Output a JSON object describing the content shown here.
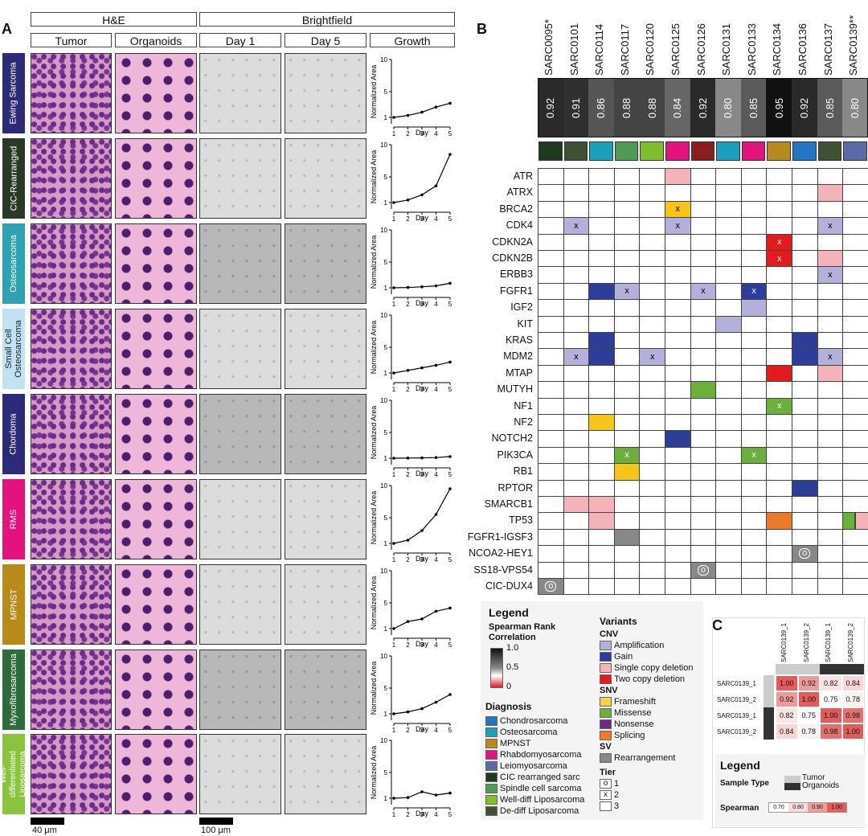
{
  "panels": {
    "a": "A",
    "b": "B",
    "c": "C"
  },
  "panelA": {
    "group_headers": {
      "he": "H&E",
      "bf": "Brightfield"
    },
    "col_headers": [
      "Tumor",
      "Organoids",
      "Day 1",
      "Day 5",
      "Growth"
    ],
    "rows": [
      {
        "label": "Ewing Sarcoma",
        "color": "#2c2a79"
      },
      {
        "label": "CIC-Rearranged",
        "color": "#2a3a27"
      },
      {
        "label": "Osteosarcoma",
        "color": "#2fa2b2"
      },
      {
        "label": "Small Cell Osteosarcoma",
        "color": "#bfe3f2"
      },
      {
        "label": "Chordoma",
        "color": "#2c2a79"
      },
      {
        "label": "RMS",
        "color": "#e4127d"
      },
      {
        "label": "MPNST",
        "color": "#b88a1a"
      },
      {
        "label": "Myxofibrosarcoma",
        "color": "#2f6a3a"
      },
      {
        "label": "Well-differentiated Liposarcoma",
        "color": "#8ac43f"
      }
    ],
    "scale_bars": [
      "40 μm",
      "100 μm"
    ],
    "chart_data": [
      {
        "type": "line",
        "ylabel": "Normalized Area",
        "xlabel": "Day",
        "x": [
          1,
          2,
          3,
          4,
          5
        ],
        "y": [
          1,
          1.3,
          1.8,
          2.6,
          3.2
        ],
        "yticks": [
          1,
          5,
          10
        ],
        "ylim": [
          0,
          10
        ]
      },
      {
        "type": "line",
        "ylabel": "Normalized Area",
        "xlabel": "Day",
        "x": [
          1,
          2,
          3,
          4,
          5
        ],
        "y": [
          1,
          1.4,
          2.2,
          3.6,
          8.5
        ],
        "yticks": [
          1,
          5,
          10
        ],
        "ylim": [
          0,
          10
        ]
      },
      {
        "type": "line",
        "ylabel": "Normalized Area",
        "xlabel": "Day",
        "x": [
          1,
          2,
          3,
          4,
          5
        ],
        "y": [
          1,
          1.05,
          1.15,
          1.3,
          1.7
        ],
        "yticks": [
          1,
          5,
          10
        ],
        "ylim": [
          0,
          10
        ]
      },
      {
        "type": "line",
        "ylabel": "Normalized Area",
        "xlabel": "Day",
        "x": [
          1,
          2,
          3,
          4,
          5
        ],
        "y": [
          1,
          1.4,
          1.8,
          2.2,
          2.7
        ],
        "yticks": [
          1,
          5,
          10
        ],
        "ylim": [
          0,
          10
        ]
      },
      {
        "type": "line",
        "ylabel": "Normalized Area",
        "xlabel": "Day",
        "x": [
          1,
          2,
          3,
          4,
          5
        ],
        "y": [
          1,
          1.02,
          1.05,
          1.1,
          1.25
        ],
        "yticks": [
          1,
          5,
          10
        ],
        "ylim": [
          0,
          10
        ]
      },
      {
        "type": "line",
        "ylabel": "Normalized Area",
        "xlabel": "Day",
        "x": [
          1,
          2,
          3,
          4,
          5
        ],
        "y": [
          1,
          1.5,
          3.0,
          5.5,
          9.5
        ],
        "yticks": [
          1,
          5,
          10
        ],
        "ylim": [
          0,
          10
        ]
      },
      {
        "type": "line",
        "ylabel": "Normalized Area",
        "xlabel": "Day",
        "x": [
          1,
          2,
          3,
          4,
          5
        ],
        "y": [
          1,
          2.1,
          2.5,
          3.7,
          4.2
        ],
        "yticks": [
          1,
          5,
          10
        ],
        "ylim": [
          0,
          10
        ]
      },
      {
        "type": "line",
        "ylabel": "Normalized Area",
        "xlabel": "Day",
        "x": [
          1,
          2,
          3,
          4,
          5
        ],
        "y": [
          1,
          1.3,
          1.8,
          2.8,
          4.0
        ],
        "yticks": [
          1,
          5,
          10
        ],
        "ylim": [
          0,
          10
        ]
      },
      {
        "type": "line",
        "ylabel": "Normalized Area",
        "xlabel": "Day",
        "x": [
          1,
          2,
          3,
          4,
          5
        ],
        "y": [
          1,
          1.1,
          2.0,
          1.5,
          1.8
        ],
        "yticks": [
          1,
          5,
          10
        ],
        "ylim": [
          0,
          10
        ]
      }
    ]
  },
  "panelB": {
    "samples": [
      "SARC0095*",
      "SARC0101",
      "SARC0114",
      "SARC0117",
      "SARC0120",
      "SARC0125",
      "SARC0126",
      "SARC0131",
      "SARC0133",
      "SARC0134",
      "SARC0136",
      "SARC0137",
      "SARC0139**"
    ],
    "spearman": [
      "0.92",
      "0.91",
      "0.86",
      "0.88",
      "0.88",
      "0.84",
      "0.92",
      "0.80",
      "0.85",
      "0.95",
      "0.92",
      "0.85",
      "0.80"
    ],
    "spearman_bg": [
      "#2a2a2a",
      "#303030",
      "#555555",
      "#444444",
      "#444444",
      "#666666",
      "#2a2a2a",
      "#888888",
      "#5a5a5a",
      "#111111",
      "#2a2a2a",
      "#5a5a5a",
      "#888888"
    ],
    "diag_colors": [
      "#1e3a1f",
      "#3e5233",
      "#1aa0b8",
      "#4f9a55",
      "#7fbf2a",
      "#e4127d",
      "#8b1f1f",
      "#1aa0b8",
      "#e4127d",
      "#b88a1a",
      "#1f78c1",
      "#3e5233",
      "#5a6ca8"
    ],
    "genes": [
      "ATR",
      "ATRX",
      "BRCA2",
      "CDK4",
      "CDKN2A",
      "CDKN2B",
      "ERBB3",
      "FGFR1",
      "IGF2",
      "KIT",
      "KRAS",
      "MDM2",
      "MTAP",
      "MUTYH",
      "NF1",
      "NF2",
      "NOTCH2",
      "PIK3CA",
      "RB1",
      "RPTOR",
      "SMARCB1",
      "TP53",
      "FGFR1-IGSF3",
      "NCOA2-HEY1",
      "SS18-VPS54",
      "CIC-DUX4"
    ],
    "cells": [
      {
        "g": 0,
        "s": 5,
        "c": "#f4b3b8",
        "t": ""
      },
      {
        "g": 1,
        "s": 11,
        "c": "#f4b3b8",
        "t": ""
      },
      {
        "g": 2,
        "s": 5,
        "c": "#f5c518",
        "t": "x"
      },
      {
        "g": 3,
        "s": 1,
        "c": "#b3b0db",
        "t": "x"
      },
      {
        "g": 3,
        "s": 5,
        "c": "#b3b0db",
        "t": "x"
      },
      {
        "g": 3,
        "s": 11,
        "c": "#b3b0db",
        "t": "x"
      },
      {
        "g": 4,
        "s": 9,
        "c": "#e41a1c",
        "t": "x"
      },
      {
        "g": 5,
        "s": 9,
        "c": "#e41a1c",
        "t": "x"
      },
      {
        "g": 5,
        "s": 11,
        "c": "#f4b3b8",
        "t": ""
      },
      {
        "g": 6,
        "s": 11,
        "c": "#b3b0db",
        "t": "x"
      },
      {
        "g": 7,
        "s": 2,
        "c": "#2c3d9a",
        "t": ""
      },
      {
        "g": 7,
        "s": 3,
        "c": "#b3b0db",
        "t": "x"
      },
      {
        "g": 7,
        "s": 6,
        "c": "#b3b0db",
        "t": "x"
      },
      {
        "g": 7,
        "s": 8,
        "c": "#2c3d9a",
        "t": "x"
      },
      {
        "g": 8,
        "s": 8,
        "c": "#b3b0db",
        "t": ""
      },
      {
        "g": 9,
        "s": 7,
        "c": "#b3b0db",
        "t": ""
      },
      {
        "g": 10,
        "s": 2,
        "c": "#2c3d9a",
        "t": ""
      },
      {
        "g": 10,
        "s": 10,
        "c": "#2c3d9a",
        "t": ""
      },
      {
        "g": 11,
        "s": 1,
        "c": "#b3b0db",
        "t": "x"
      },
      {
        "g": 11,
        "s": 2,
        "c": "#2c3d9a",
        "t": ""
      },
      {
        "g": 11,
        "s": 4,
        "c": "#b3b0db",
        "t": "x"
      },
      {
        "g": 11,
        "s": 10,
        "c": "#2c3d9a",
        "t": ""
      },
      {
        "g": 11,
        "s": 11,
        "c": "#b3b0db",
        "t": "x"
      },
      {
        "g": 12,
        "s": 9,
        "c": "#e41a1c",
        "t": ""
      },
      {
        "g": 12,
        "s": 11,
        "c": "#f4b3b8",
        "t": ""
      },
      {
        "g": 13,
        "s": 6,
        "c": "#6ab03a",
        "t": ""
      },
      {
        "g": 14,
        "s": 9,
        "c": "#6ab03a",
        "t": "x"
      },
      {
        "g": 15,
        "s": 2,
        "c": "#f5c518",
        "t": ""
      },
      {
        "g": 16,
        "s": 5,
        "c": "#2c3d9a",
        "t": ""
      },
      {
        "g": 17,
        "s": 3,
        "c": "#6ab03a",
        "t": "x"
      },
      {
        "g": 17,
        "s": 8,
        "c": "#6ab03a",
        "t": "x"
      },
      {
        "g": 18,
        "s": 3,
        "c": "#f5c518",
        "t": ""
      },
      {
        "g": 19,
        "s": 10,
        "c": "#2c3d9a",
        "t": ""
      },
      {
        "g": 20,
        "s": 1,
        "c": "#f4b3b8",
        "t": ""
      },
      {
        "g": 20,
        "s": 2,
        "c": "#f4b3b8",
        "t": ""
      },
      {
        "g": 21,
        "s": 2,
        "c": "#f4b3b8",
        "t": ""
      },
      {
        "g": 21,
        "s": 9,
        "c": "#ec7a2a",
        "t": ""
      },
      {
        "g": 22,
        "s": 3,
        "c": "#888888",
        "t": ""
      },
      {
        "g": 23,
        "s": 10,
        "c": "#888888",
        "t": "o"
      },
      {
        "g": 24,
        "s": 6,
        "c": "#888888",
        "t": "o"
      },
      {
        "g": 25,
        "s": 0,
        "c": "#888888",
        "t": "o"
      }
    ],
    "split_cells": [
      {
        "g": 21,
        "s": 12,
        "c1": "#6ab03a",
        "c2": "#f4b3b8"
      }
    ]
  },
  "legend": {
    "title": "Legend",
    "spearman_title": "Spearman Rank Correlation",
    "spearman_ticks": [
      "1.0",
      "0.5",
      "0"
    ],
    "diagnosis_title": "Diagnosis",
    "diagnosis": [
      {
        "label": "Chondrosarcoma",
        "color": "#1f78c1"
      },
      {
        "label": "Osteosarcoma",
        "color": "#1aa0b8"
      },
      {
        "label": "MPNST",
        "color": "#b88a1a"
      },
      {
        "label": "Rhabdomyosarcoma",
        "color": "#e4127d"
      },
      {
        "label": "Leiomyosarcoma",
        "color": "#5a6ca8"
      },
      {
        "label": "CIC rearranged sarc",
        "color": "#1e3a1f"
      },
      {
        "label": "Spindle cell sarcoma",
        "color": "#4f9a55"
      },
      {
        "label": "Well-diff Liposarcoma",
        "color": "#7fbf2a"
      },
      {
        "label": "De-diff Liposarcoma",
        "color": "#3e5233"
      }
    ],
    "variants_title": "Variants",
    "cnv_title": "CNV",
    "cnv": [
      {
        "label": "Amplification",
        "color": "#b3b0db"
      },
      {
        "label": "Gain",
        "color": "#2c3d9a"
      },
      {
        "label": "Single copy deletion",
        "color": "#f4b3b8"
      },
      {
        "label": "Two copy deletion",
        "color": "#e41a1c"
      }
    ],
    "snv_title": "SNV",
    "snv": [
      {
        "label": "Frameshift",
        "color": "#f5d24a"
      },
      {
        "label": "Missense",
        "color": "#6ab03a"
      },
      {
        "label": "Nonsense",
        "color": "#6a2a8a"
      },
      {
        "label": "Splicing",
        "color": "#ec7a2a"
      }
    ],
    "sv_title": "SV",
    "sv": [
      {
        "label": "Rearrangement",
        "color": "#888888"
      }
    ],
    "tier_title": "Tier",
    "tiers": [
      {
        "sym": "o",
        "label": "1"
      },
      {
        "sym": "x",
        "label": "2"
      },
      {
        "sym": "",
        "label": "3"
      }
    ]
  },
  "panelC": {
    "col_labels": [
      "SARC0139_1",
      "SARC0139_2",
      "SARC0139_1",
      "SARC0139_2"
    ],
    "row_labels": [
      "SARC0139_1",
      "SARC0139_2",
      "SARC0139_1",
      "SARC0139_2"
    ],
    "sample_type_colors": [
      "#cccccc",
      "#cccccc",
      "#333333",
      "#333333"
    ],
    "matrix": [
      [
        "1.00",
        "0.92",
        "0.82",
        "0.84"
      ],
      [
        "0.92",
        "1.00",
        "0.75",
        "0.78"
      ],
      [
        "0.82",
        "0.75",
        "1.00",
        "0.98"
      ],
      [
        "0.84",
        "0.78",
        "0.98",
        "1.00"
      ]
    ],
    "matrix_colors": [
      [
        "#e35b5b",
        "#ef9a9a",
        "#fbe3e3",
        "#f9d6d6"
      ],
      [
        "#ef9a9a",
        "#e35b5b",
        "#ffffff",
        "#fdf1f1"
      ],
      [
        "#fbe3e3",
        "#ffffff",
        "#e35b5b",
        "#e76f6f"
      ],
      [
        "#f9d6d6",
        "#fdf1f1",
        "#e76f6f",
        "#e35b5b"
      ]
    ],
    "legend_title": "Legend",
    "sample_type_label": "Sample Type",
    "sample_types": [
      {
        "label": "Tumor",
        "color": "#cccccc"
      },
      {
        "label": "Organoids",
        "color": "#333333"
      }
    ],
    "spearman_label": "Spearman",
    "spearman_scale": [
      {
        "v": "0.70",
        "c": "#ffffff"
      },
      {
        "v": "0.80",
        "c": "#fbdcdc"
      },
      {
        "v": "0.90",
        "c": "#f29b9b"
      },
      {
        "v": "1.00",
        "c": "#e35b5b"
      }
    ]
  }
}
